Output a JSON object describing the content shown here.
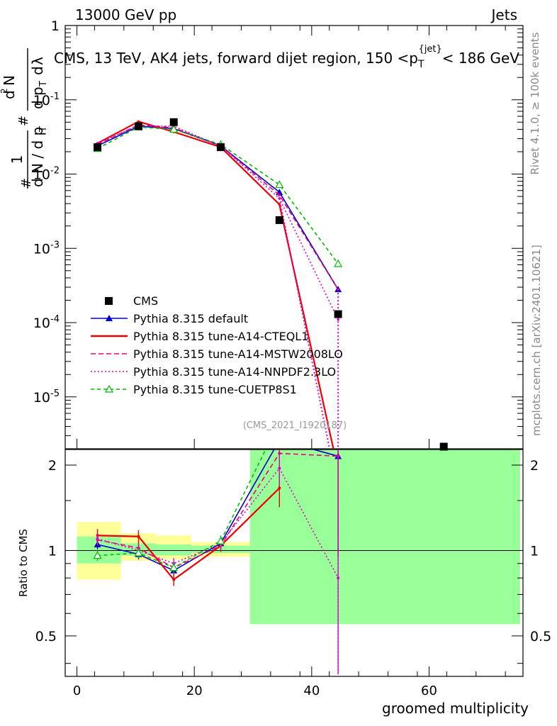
{
  "header": {
    "left": "13000 GeV pp",
    "right": "Jets"
  },
  "side_labels": {
    "rivet": "Rivet 4.1.0, ≥ 100k events",
    "mcplots": "mcplots.cern.ch [arXiv:2401.10621]"
  },
  "chart_data": {
    "type": "line",
    "title": "CMS, 13 TeV, AK4 jets, forward dijet region, 150 <p_T^{jet}< 186 GeV",
    "title_parts": {
      "main": "CMS, 13 TeV, AK4 jets, forward dijet region, 150 <p",
      "sub": "T",
      "sup": "{jet}",
      "end": "< 186 GeV"
    },
    "ylabel": "1/(dN/dp_T) d²N/(dp_T dλ)",
    "xlabel": "groomed multiplicity",
    "ratio_ylabel": "Ratio to CMS",
    "watermark": "(CMS_2021_I1920187)",
    "yscale": "log",
    "ylim": [
      2e-06,
      1.0
    ],
    "xlim": [
      -2,
      76
    ],
    "ratio_ylim": [
      0.36,
      2.27
    ],
    "ratio_scale": "log",
    "x_ticks": [
      "0",
      "20",
      "40",
      "60"
    ],
    "y_ticks": [
      "1",
      "10^{-1}",
      "10^{-2}",
      "10^{-3}",
      "10^{-4}",
      "10^{-5}"
    ],
    "ratio_ticks": [
      "0.5",
      "1",
      "2"
    ],
    "grid": false,
    "legend_position": "lower-left",
    "bins": [
      {
        "lo": 0,
        "hi": 7.5
      },
      {
        "lo": 7.5,
        "hi": 13.5
      },
      {
        "lo": 13.5,
        "hi": 19.5
      },
      {
        "lo": 19.5,
        "hi": 29.5
      },
      {
        "lo": 29.5,
        "hi": 39.5
      },
      {
        "lo": 39.5,
        "hi": 49.5
      },
      {
        "lo": 49.5,
        "hi": 75.5
      }
    ],
    "band_yellow": [
      [
        0.79,
        1.26
      ],
      [
        0.92,
        1.15
      ],
      [
        0.93,
        1.13
      ],
      [
        0.95,
        1.07
      ],
      [
        0.55,
        1.9
      ],
      [
        0.55,
        2.3
      ],
      [
        0.55,
        2.3
      ]
    ],
    "band_green": [
      [
        0.9,
        1.12
      ],
      [
        0.96,
        1.06
      ],
      [
        0.96,
        1.05
      ],
      [
        0.98,
        1.04
      ],
      [
        0.55,
        2.3
      ],
      [
        0.55,
        2.3
      ],
      [
        0.55,
        2.3
      ]
    ],
    "data": {
      "name": "CMS",
      "x": [
        3.5,
        10.5,
        16.5,
        24.5,
        34.5,
        44.5,
        62.5
      ],
      "y": [
        0.023,
        0.044,
        0.05,
        0.023,
        0.0024,
        0.00013,
        1.9e-06
      ]
    },
    "series": [
      {
        "name": "Pythia 8.315 default",
        "color": "#0000cc",
        "dash": "",
        "marker": "triangle",
        "x": [
          3.5,
          10.5,
          16.5,
          24.5,
          34.5,
          44.5
        ],
        "y": [
          0.024,
          0.044,
          0.041,
          0.024,
          0.0057,
          0.00028
        ],
        "ratio": [
          1.05,
          0.97,
          0.85,
          1.06,
          2.45,
          2.15
        ],
        "ratio_err": [
          0.04,
          0.04,
          0.04,
          0.05,
          0.25,
          1.2
        ]
      },
      {
        "name": "Pythia 8.315 tune-A14-CTEQL1",
        "color": "#ee0000",
        "dash": "",
        "marker": "none",
        "x": [
          3.5,
          10.5,
          16.5,
          24.5,
          34.5,
          44.5
        ],
        "y": [
          0.026,
          0.051,
          0.037,
          0.023,
          0.0039,
          0.0
        ],
        "ratio": [
          1.13,
          1.12,
          0.79,
          1.04,
          1.66
        ],
        "ratio_err": [
          0.06,
          0.06,
          0.04,
          0.05,
          0.24
        ]
      },
      {
        "name": "Pythia 8.315 tune-A14-MSTW2008LO",
        "color": "#ee0077",
        "dash": "7,4",
        "marker": "none",
        "x": [
          3.5,
          10.5,
          16.5,
          24.5,
          34.5,
          44.5
        ],
        "y": [
          0.025,
          0.046,
          0.042,
          0.024,
          0.0052,
          0.00028
        ],
        "ratio": [
          1.09,
          1.02,
          0.87,
          1.04,
          2.2,
          2.15
        ],
        "ratio_err": [
          0.05,
          0.05,
          0.04,
          0.05,
          0.25,
          1.2
        ]
      },
      {
        "name": "Pythia 8.315 tune-A14-NNPDF2.3LO",
        "color": "#dd00cc",
        "dash": "2,3",
        "marker": "none",
        "x": [
          3.5,
          10.5,
          16.5,
          24.5,
          34.5,
          44.5
        ],
        "y": [
          0.026,
          0.045,
          0.044,
          0.024,
          0.0047,
          0.00011
        ],
        "ratio": [
          1.1,
          1.0,
          0.9,
          1.06,
          1.95,
          0.8
        ],
        "ratio_err": [
          0.05,
          0.05,
          0.04,
          0.05,
          0.25,
          0.6
        ]
      },
      {
        "name": "Pythia 8.315 tune-CUETP8S1",
        "color": "#00bb00",
        "dash": "5,4",
        "marker": "open-triangle",
        "x": [
          3.5,
          10.5,
          16.5,
          24.5,
          34.5,
          44.5
        ],
        "y": [
          0.022,
          0.043,
          0.04,
          0.025,
          0.0072,
          0.00062
        ],
        "ratio": [
          0.96,
          0.98,
          0.87,
          1.08,
          2.85
        ],
        "ratio_err": [
          0.04,
          0.04,
          0.04,
          0.05,
          0.3
        ]
      }
    ]
  }
}
